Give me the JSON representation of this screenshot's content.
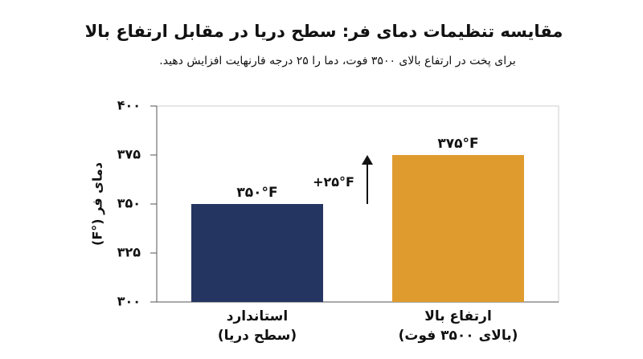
{
  "chart_data": {
    "type": "bar",
    "title": "مقایسه تنظیمات دمای فر: سطح دریا در مقابل ارتفاع بالا",
    "subtitle": "برای پخت در ارتفاع بالای ۳۵۰۰ فوت، دما را ۲۵ درجه فارنهایت افزایش دهید.",
    "y_label": "دمای فر (°F)",
    "categories": [
      "استاندارد\n(سطح دریا)",
      "ارتفاع بالا\n(بالای ۳۵۰۰ فوت)"
    ],
    "values": [
      350,
      375
    ],
    "value_labels": [
      "۳۵۰°F",
      "۳۷۵°F"
    ],
    "colors": [
      "#253561",
      "#e09b2f"
    ],
    "annotation": "+۲۵°F",
    "ylim": [
      300,
      400
    ],
    "yticks": [
      {
        "value": 300,
        "label": "۳۰۰"
      },
      {
        "value": 325,
        "label": "۳۲۵"
      },
      {
        "value": 350,
        "label": "۳۵۰"
      },
      {
        "value": 375,
        "label": "۳۷۵"
      },
      {
        "value": 400,
        "label": "۴۰۰"
      }
    ]
  }
}
